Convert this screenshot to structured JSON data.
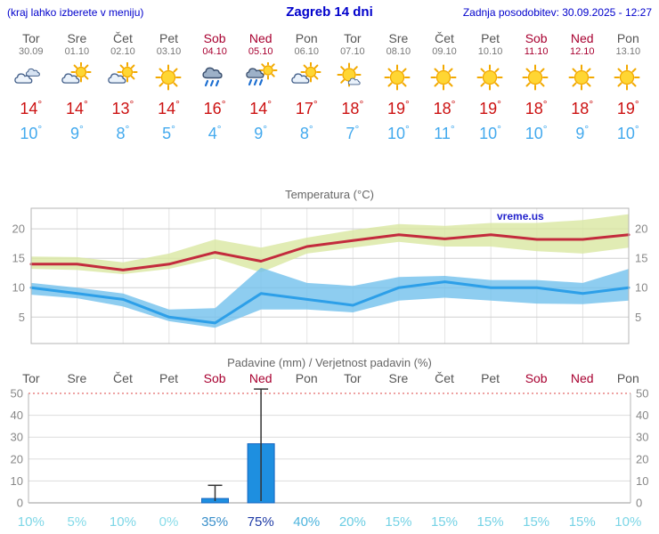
{
  "header": {
    "left_note": "(kraj lahko izberete v meniju)",
    "title": "Zagreb 14 dni",
    "updated": "Zadnja posodobitev: 30.09.2025 - 12:27"
  },
  "days": [
    {
      "name": "Tor",
      "date": "30.09",
      "weekend": false,
      "icon": "cloudy",
      "tmax": 14,
      "tmin": 10
    },
    {
      "name": "Sre",
      "date": "01.10",
      "weekend": false,
      "icon": "partly",
      "tmax": 14,
      "tmin": 9
    },
    {
      "name": "Čet",
      "date": "02.10",
      "weekend": false,
      "icon": "partly",
      "tmax": 13,
      "tmin": 8
    },
    {
      "name": "Pet",
      "date": "03.10",
      "weekend": false,
      "icon": "sunny",
      "tmax": 14,
      "tmin": 5
    },
    {
      "name": "Sob",
      "date": "04.10",
      "weekend": true,
      "icon": "rain",
      "tmax": 16,
      "tmin": 4
    },
    {
      "name": "Ned",
      "date": "05.10",
      "weekend": true,
      "icon": "rain-sun",
      "tmax": 14,
      "tmin": 9
    },
    {
      "name": "Pon",
      "date": "06.10",
      "weekend": false,
      "icon": "partly",
      "tmax": 17,
      "tmin": 8
    },
    {
      "name": "Tor",
      "date": "07.10",
      "weekend": false,
      "icon": "mostly-sunny",
      "tmax": 18,
      "tmin": 7
    },
    {
      "name": "Sre",
      "date": "08.10",
      "weekend": false,
      "icon": "sunny",
      "tmax": 19,
      "tmin": 10
    },
    {
      "name": "Čet",
      "date": "09.10",
      "weekend": false,
      "icon": "sunny",
      "tmax": 18,
      "tmin": 11
    },
    {
      "name": "Pet",
      "date": "10.10",
      "weekend": false,
      "icon": "sunny",
      "tmax": 19,
      "tmin": 10
    },
    {
      "name": "Sob",
      "date": "11.10",
      "weekend": true,
      "icon": "sunny",
      "tmax": 18,
      "tmin": 10
    },
    {
      "name": "Ned",
      "date": "12.10",
      "weekend": true,
      "icon": "sunny",
      "tmax": 18,
      "tmin": 9
    },
    {
      "name": "Pon",
      "date": "13.10",
      "weekend": false,
      "icon": "sunny",
      "tmax": 19,
      "tmin": 10
    }
  ],
  "chart_data": [
    {
      "type": "line",
      "title": "Temperatura (°C)",
      "watermark": "vreme.us",
      "x": [
        "Tor",
        "Sre",
        "Čet",
        "Pet",
        "Sob",
        "Ned",
        "Pon",
        "Tor",
        "Sre",
        "Čet",
        "Pet",
        "Sob",
        "Ned",
        "Pon"
      ],
      "yticks": [
        5,
        10,
        15,
        20
      ],
      "ylim": [
        0.5,
        23.5
      ],
      "series": [
        {
          "name": "temp-max",
          "color": "#c32b3d",
          "band_color": "#d9e7a1",
          "values": [
            14,
            14,
            13,
            14,
            16,
            14.5,
            17,
            18,
            19,
            18.3,
            19,
            18.2,
            18.2,
            19
          ],
          "band_upper": [
            15.3,
            15.2,
            14.3,
            15.8,
            18.2,
            16.8,
            18.5,
            19.8,
            20.8,
            20.5,
            21,
            21,
            21.5,
            22.5
          ],
          "band_lower": [
            13.2,
            13,
            12.3,
            13.2,
            15,
            12.6,
            15.8,
            16.8,
            17.8,
            17,
            17,
            16.2,
            15.8,
            16.8
          ]
        },
        {
          "name": "temp-min",
          "color": "#2d9fe8",
          "band_color": "#72c0ec",
          "values": [
            10,
            9,
            8,
            5,
            4,
            9,
            8,
            7,
            10,
            11,
            10,
            10,
            9,
            10
          ],
          "band_upper": [
            10.8,
            10,
            9,
            6.3,
            6.5,
            13.4,
            10.8,
            10.3,
            11.8,
            12,
            11.3,
            11.3,
            10.8,
            13.2
          ],
          "band_lower": [
            8.8,
            8.2,
            6.8,
            4.3,
            3.2,
            6.3,
            6.3,
            5.8,
            7.8,
            8.3,
            7.8,
            7.3,
            7.2,
            7.8
          ]
        }
      ]
    },
    {
      "type": "bar",
      "title": "Padavine (mm) / Verjetnost padavin (%)",
      "x": [
        "Tor",
        "Sre",
        "Čet",
        "Pet",
        "Sob",
        "Ned",
        "Pon",
        "Tor",
        "Sre",
        "Čet",
        "Pet",
        "Sob",
        "Ned",
        "Pon"
      ],
      "weekend_flags": [
        false,
        false,
        false,
        false,
        true,
        true,
        false,
        false,
        false,
        false,
        false,
        true,
        true,
        false
      ],
      "yticks": [
        0,
        10,
        20,
        30,
        40,
        50
      ],
      "ylim": [
        0,
        50
      ],
      "values": [
        0,
        0,
        0,
        0,
        2,
        27,
        0,
        0,
        0,
        0,
        0,
        0,
        0,
        0
      ],
      "whisker_high": [
        0,
        0,
        0,
        0,
        8,
        52,
        0,
        0,
        0,
        0,
        0,
        0,
        0,
        0
      ],
      "bar_color": "#1e8fe0",
      "bar_stroke": "#1565c0",
      "probabilities": [
        "10%",
        "5%",
        "10%",
        "0%",
        "35%",
        "75%",
        "40%",
        "20%",
        "15%",
        "15%",
        "15%",
        "15%",
        "15%",
        "10%"
      ],
      "prob_colors": [
        "#7cd6e6",
        "#82dae8",
        "#7cd6e6",
        "#88dce9",
        "#3a8fca",
        "#1d3aa5",
        "#4db4dd",
        "#68cce2",
        "#74d2e5",
        "#74d2e5",
        "#74d2e5",
        "#74d2e5",
        "#74d2e5",
        "#7cd6e6"
      ]
    }
  ]
}
